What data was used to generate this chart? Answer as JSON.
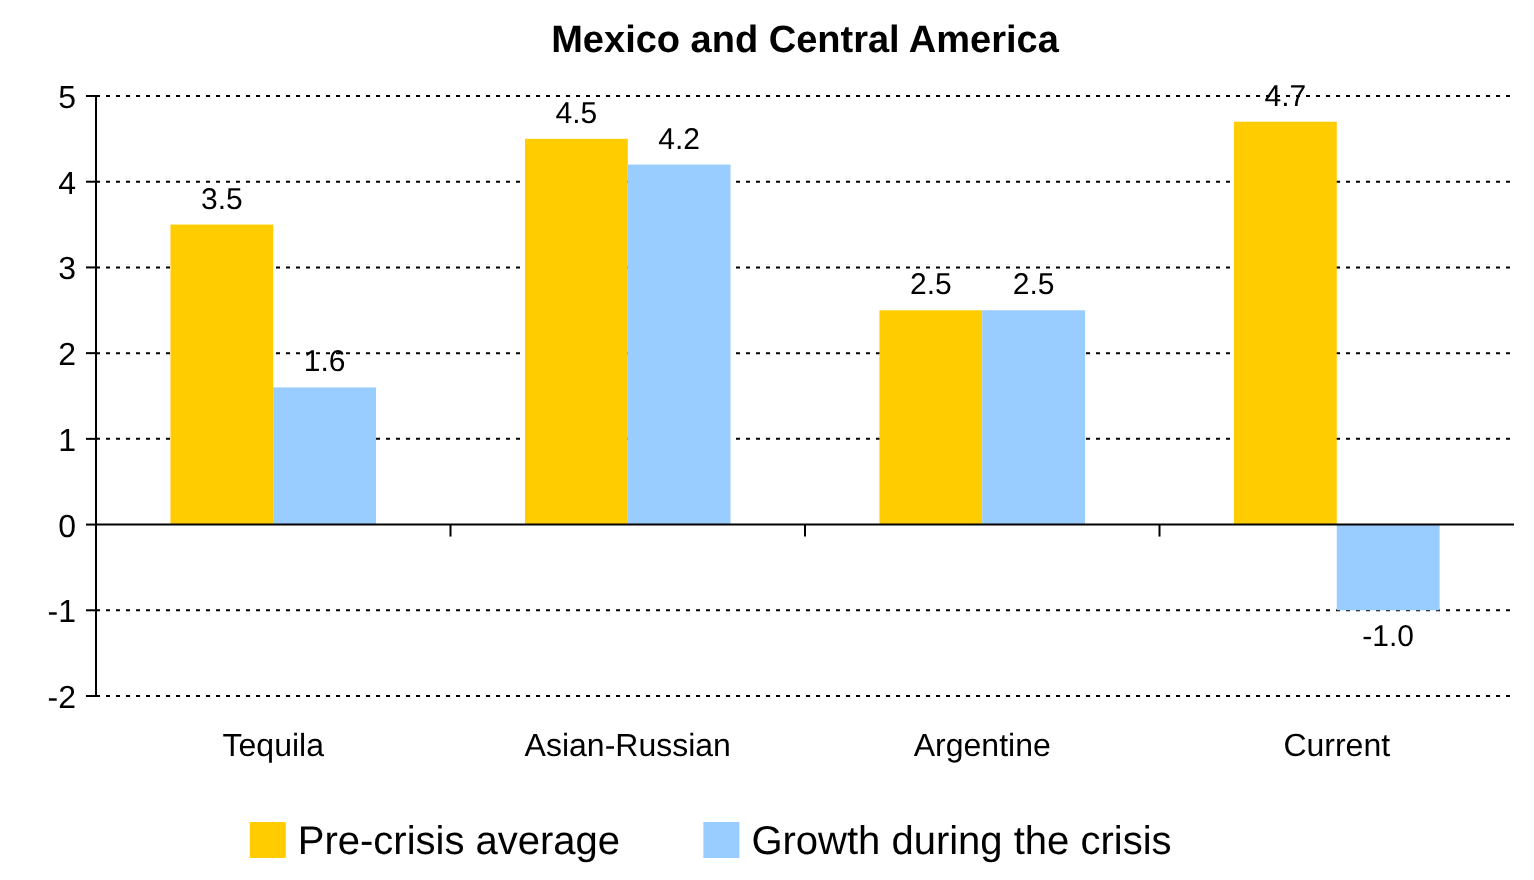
{
  "chart_data": {
    "type": "bar",
    "title": "Mexico and Central America",
    "categories": [
      "Tequila",
      "Asian-Russian",
      "Argentine",
      "Current"
    ],
    "series": [
      {
        "name": "Pre-crisis average",
        "color": "#ffcc00",
        "values": [
          3.5,
          4.5,
          2.5,
          4.7
        ],
        "value_labels": [
          "3.5",
          "4.5",
          "2.5",
          "4.7"
        ]
      },
      {
        "name": "Growth during the crisis",
        "color": "#99ccff",
        "values": [
          1.6,
          4.2,
          2.5,
          -1.0
        ],
        "value_labels": [
          "1.6",
          "4.2",
          "2.5",
          "-1.0"
        ]
      }
    ],
    "ylim": [
      -2,
      5
    ],
    "yticks": [
      -2,
      -1,
      0,
      1,
      2,
      3,
      4,
      5
    ],
    "grid": "y",
    "legend": "bottom"
  }
}
